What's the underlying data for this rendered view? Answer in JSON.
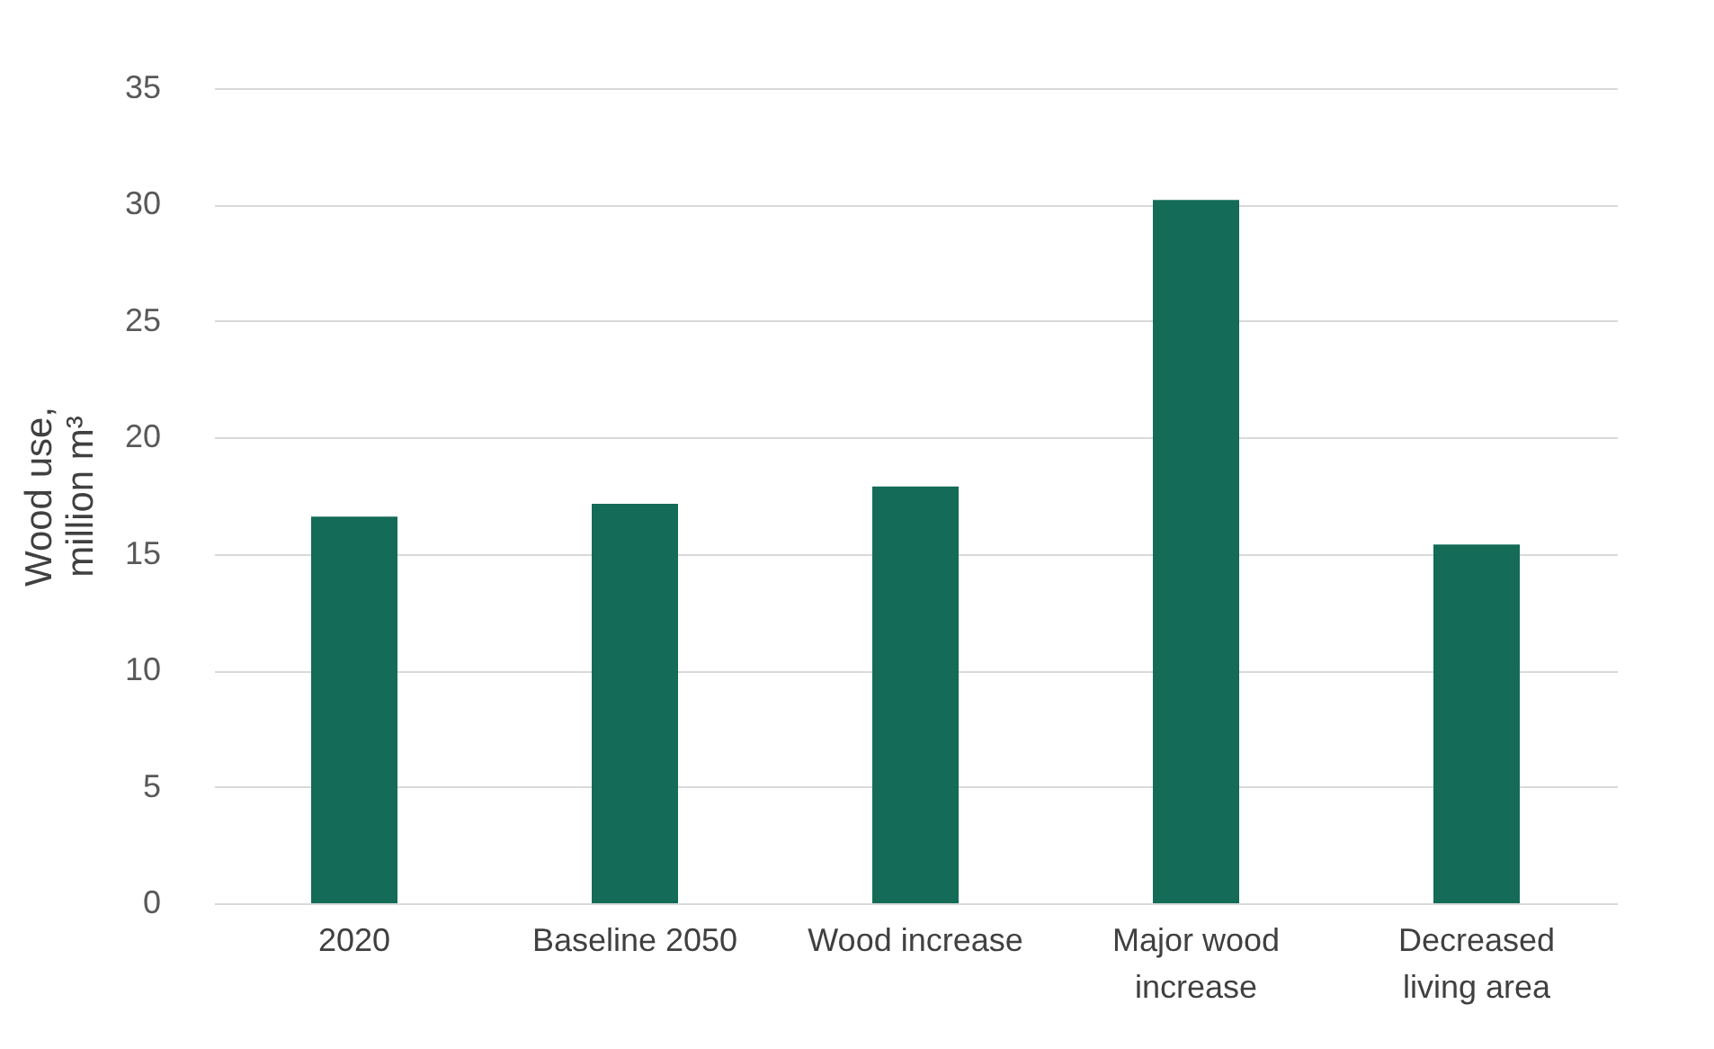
{
  "chart_data": {
    "type": "bar",
    "ylabel": "Wood use,\nmillion m³",
    "categories": [
      "2020",
      "Baseline 2050",
      "Wood increase",
      "Major wood increase",
      "Decreased living area"
    ],
    "values": [
      16.6,
      17.15,
      17.9,
      30.2,
      15.4
    ],
    "color": "#136b58",
    "ylim": [
      0,
      35
    ],
    "yticks": [
      0,
      5,
      10,
      15,
      20,
      25,
      30,
      35
    ],
    "grid": "y"
  }
}
